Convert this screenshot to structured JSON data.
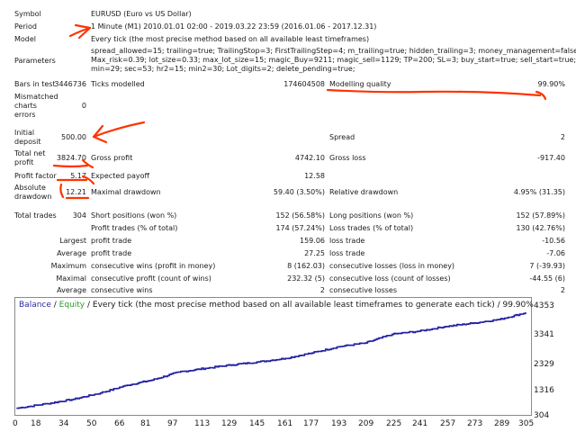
{
  "report": {
    "symbol_label": "Symbol",
    "symbol_value": "EURUSD (Euro vs US Dollar)",
    "period_label": "Period",
    "period_value": "1 Minute (M1) 2010.01.01 02:00 - 2019.03.22 23:59 (2016.01.06 - 2017.12.31)",
    "model_label": "Model",
    "model_value": "Every tick (the most precise method based on all available least timeframes)",
    "parameters_label": "Parameters",
    "parameters_lines": [
      "spread_allowed=15; trailing=true; TrailingStop=3; FirstTrailingStep=4; m_trailing=true; hidden_trailing=3; money_management=false;",
      "Max_risk=0.39; lot_size=0.33; max_lot_size=15; magic_Buy=9211; magic_sell=1129; TP=200; SL=3; buy_start=true; sell_start=true; hr=15;",
      "min=29; sec=53; hr2=15; min2=30; Lot_digits=2; delete_pending=true;"
    ],
    "bars_label": "Bars in test",
    "bars_value": "3446736",
    "ticks_label": "Ticks modelled",
    "ticks_value": "174604508",
    "quality_label": "Modelling quality",
    "quality_value": "99.90%",
    "mismatch_label_lines": [
      "Mismatched",
      "charts",
      "errors"
    ],
    "mismatch_value": "0",
    "initial_label_lines": [
      "Initial",
      "deposit"
    ],
    "initial_value": "500.00",
    "spread_label": "Spread",
    "spread_value": "2",
    "net_label_lines": [
      "Total net",
      "profit"
    ],
    "net_value": "3824.70",
    "gross_profit_label": "Gross profit",
    "gross_profit_value": "4742.10",
    "gross_loss_label": "Gross loss",
    "gross_loss_value": "-917.40",
    "pf_label": "Profit factor",
    "pf_value": "5.17",
    "ep_label": "Expected payoff",
    "ep_value": "12.58",
    "abs_dd_label_lines": [
      "Absolute",
      "drawdown"
    ],
    "abs_dd_value": "12.21",
    "max_dd_label": "Maximal drawdown",
    "max_dd_value": "59.40 (3.50%)",
    "rel_dd_label": "Relative drawdown",
    "rel_dd_value": "4.95% (31.35)",
    "trades_label": "Total trades",
    "trades_value": "304",
    "short_label": "Short positions (won %)",
    "short_value": "152 (56.58%)",
    "long_label": "Long positions (won %)",
    "long_value": "152 (57.89%)",
    "pt_label": "Profit trades (% of total)",
    "pt_value": "174 (57.24%)",
    "lt_label": "Loss trades (% of total)",
    "lt_value": "130 (42.76%)",
    "largest_label": "Largest",
    "largest_pt_label": "profit trade",
    "largest_pt_value": "159.06",
    "largest_lt_label": "loss trade",
    "largest_lt_value": "-10.56",
    "average_label": "Average",
    "average_pt_label": "profit trade",
    "average_pt_value": "27.25",
    "average_lt_label": "loss trade",
    "average_lt_value": "-7.06",
    "maximum_label": "Maximum",
    "cw_label": "consecutive wins (profit in money)",
    "cw_value": "8 (162.03)",
    "cl_label": "consecutive losses (loss in money)",
    "cl_value": "7 (-39.93)",
    "maximal_label": "Maximal",
    "cp_label": "consecutive profit (count of wins)",
    "cp_value": "232.32 (5)",
    "closs_label": "consecutive loss (count of losses)",
    "closs_value": "-44.55 (6)",
    "average2_label": "Average",
    "acw_label": "consecutive wins",
    "acw_value": "2",
    "acl_label": "consecutive losses",
    "acl_value": "2"
  },
  "chart_header": {
    "balance": "Balance",
    "slash": " / ",
    "equity": "Equity",
    "rest": " / Every tick (the most precise method based on all available least timeframes to generate each tick) / 99.90%"
  },
  "colors": {
    "balance_line": "#1f1fa0",
    "equity_line": "#2a9a2a",
    "annotation": "#ff3300"
  },
  "chart_data": {
    "type": "line",
    "title": "Balance / Equity / Every tick (the most precise method based on all available least timeframes to generate each tick) / 99.90%",
    "xlabel": "",
    "ylabel": "",
    "x_ticks": [
      "0",
      "18",
      "34",
      "50",
      "66",
      "81",
      "97",
      "113",
      "129",
      "145",
      "161",
      "177",
      "193",
      "209",
      "225",
      "241",
      "257",
      "273",
      "289",
      "305"
    ],
    "y_ticks": [
      "4353",
      "3341",
      "2329",
      "1316",
      "304"
    ],
    "xlim": [
      0,
      305
    ],
    "ylim": [
      304,
      4353
    ],
    "grid": false,
    "legend": "top-left",
    "series": [
      {
        "name": "Balance",
        "x": [
          0,
          18,
          34,
          50,
          66,
          81,
          97,
          113,
          129,
          145,
          161,
          177,
          193,
          209,
          225,
          241,
          257,
          273,
          289,
          305
        ],
        "y": [
          500,
          680,
          860,
          1110,
          1420,
          1630,
          1950,
          2100,
          2240,
          2360,
          2500,
          2720,
          2970,
          3120,
          3470,
          3590,
          3780,
          3910,
          4060,
          4330
        ]
      }
    ]
  }
}
